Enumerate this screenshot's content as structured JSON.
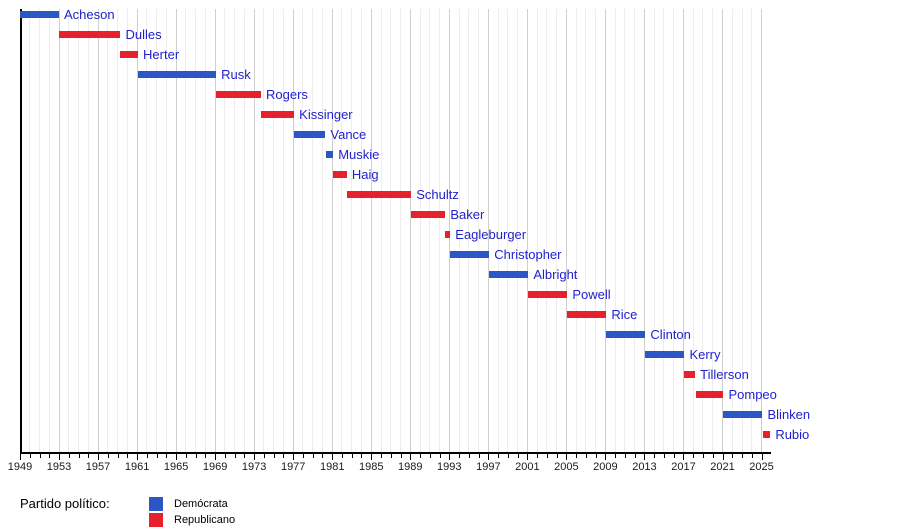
{
  "chart_data": {
    "type": "bar",
    "subtype": "gantt-timeline",
    "title": "",
    "xlabel": "",
    "ylabel": "",
    "x_axis": {
      "min": 1949,
      "max": 2025,
      "major_tick_interval": 4,
      "minor_tick_interval": 1,
      "tick_labels": [
        "1949",
        "1953",
        "1957",
        "1961",
        "1965",
        "1969",
        "1973",
        "1977",
        "1981",
        "1985",
        "1989",
        "1993",
        "1997",
        "2001",
        "2005",
        "2009",
        "2013",
        "2017",
        "2021",
        "2025"
      ],
      "grid": "on"
    },
    "series": [
      {
        "name": "Acheson",
        "party": "dem",
        "start": 1949.0,
        "end": 1953.0
      },
      {
        "name": "Dulles",
        "party": "rep",
        "start": 1953.0,
        "end": 1959.3
      },
      {
        "name": "Herter",
        "party": "rep",
        "start": 1959.3,
        "end": 1961.1
      },
      {
        "name": "Rusk",
        "party": "dem",
        "start": 1961.1,
        "end": 1969.1
      },
      {
        "name": "Rogers",
        "party": "rep",
        "start": 1969.1,
        "end": 1973.7
      },
      {
        "name": "Kissinger",
        "party": "rep",
        "start": 1973.7,
        "end": 1977.1
      },
      {
        "name": "Vance",
        "party": "dem",
        "start": 1977.1,
        "end": 1980.3
      },
      {
        "name": "Muskie",
        "party": "dem",
        "start": 1980.4,
        "end": 1981.1
      },
      {
        "name": "Haig",
        "party": "rep",
        "start": 1981.1,
        "end": 1982.5
      },
      {
        "name": "Schultz",
        "party": "rep",
        "start": 1982.5,
        "end": 1989.1
      },
      {
        "name": "Baker",
        "party": "rep",
        "start": 1989.1,
        "end": 1992.6
      },
      {
        "name": "Eagleburger",
        "party": "rep",
        "start": 1992.6,
        "end": 1993.1
      },
      {
        "name": "Christopher",
        "party": "dem",
        "start": 1993.1,
        "end": 1997.1
      },
      {
        "name": "Albright",
        "party": "dem",
        "start": 1997.1,
        "end": 2001.1
      },
      {
        "name": "Powell",
        "party": "rep",
        "start": 2001.1,
        "end": 2005.1
      },
      {
        "name": "Rice",
        "party": "rep",
        "start": 2005.1,
        "end": 2009.1
      },
      {
        "name": "Clinton",
        "party": "dem",
        "start": 2009.1,
        "end": 2013.1
      },
      {
        "name": "Kerry",
        "party": "dem",
        "start": 2013.1,
        "end": 2017.1
      },
      {
        "name": "Tillerson",
        "party": "rep",
        "start": 2017.1,
        "end": 2018.2
      },
      {
        "name": "Pompeo",
        "party": "rep",
        "start": 2018.3,
        "end": 2021.1
      },
      {
        "name": "Blinken",
        "party": "dem",
        "start": 2021.1,
        "end": 2025.1
      },
      {
        "name": "Rubio",
        "party": "rep",
        "start": 2025.1,
        "end": 2025.9
      }
    ],
    "colors": {
      "dem": "#2B57C6",
      "rep": "#E6212B",
      "bar_label": "#2222CC",
      "tick_label": "#1a1a1a",
      "gridline_minor": "#EDEDED",
      "gridline_major": "#CFCFCF",
      "axis": "#000000"
    },
    "legend_position": "bottom-left"
  },
  "legend": {
    "title": "Partido político:",
    "items": [
      {
        "label": "Demócrata",
        "party": "dem",
        "color": "#2B57C6"
      },
      {
        "label": "Republicano",
        "party": "rep",
        "color": "#E6212B"
      }
    ]
  }
}
